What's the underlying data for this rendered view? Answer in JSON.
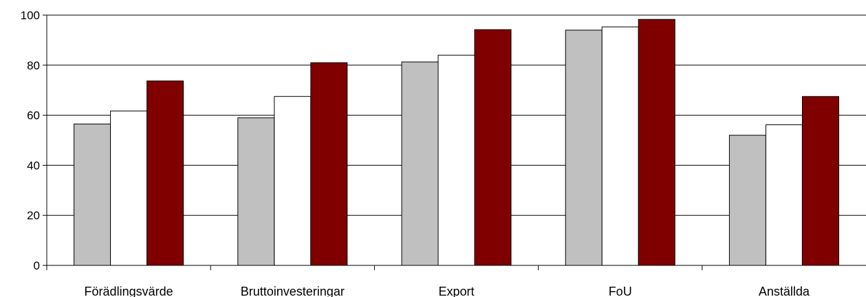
{
  "chart_data": {
    "type": "bar",
    "categories": [
      "Förädlingsvärde",
      "Bruttoinvesteringar",
      "Export",
      "FoU",
      "Anställda"
    ],
    "series": [
      {
        "values": [
          56.5,
          59,
          81.3,
          94,
          52
        ],
        "color": "#c0c0c0"
      },
      {
        "values": [
          61.7,
          67.5,
          84,
          95.3,
          56.2
        ],
        "color": "#ffffff"
      },
      {
        "values": [
          73.7,
          81,
          94.2,
          98.3,
          67.5
        ],
        "color": "#800000"
      }
    ],
    "ylim": [
      0,
      100
    ],
    "yticks": [
      0,
      20,
      40,
      60,
      80,
      100
    ],
    "grid": true,
    "legend": "none"
  }
}
